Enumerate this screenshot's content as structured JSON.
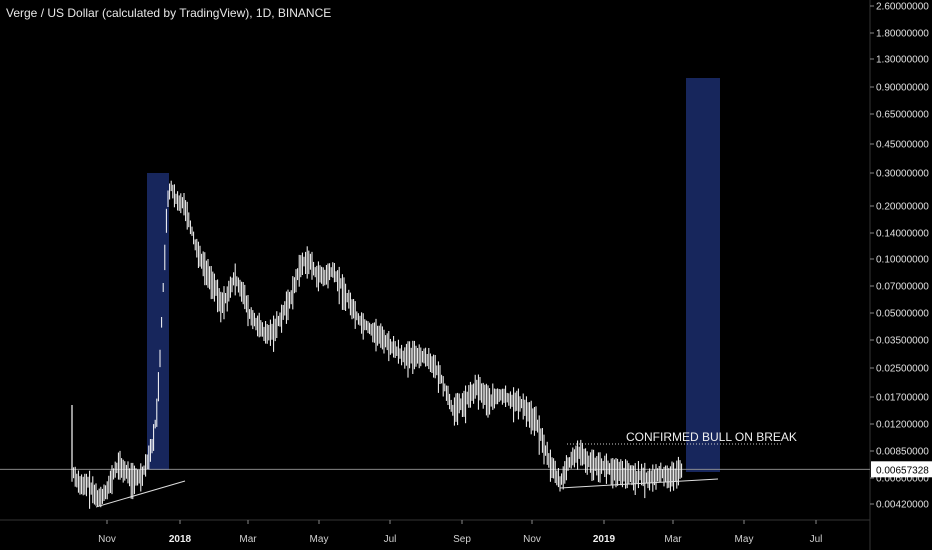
{
  "title": "Verge / US Dollar (calculated by TradingView), 1D, BINANCE",
  "annotation": "CONFIRMED BULL ON BREAK",
  "current_price_label": "0.00657328",
  "colors": {
    "background": "#000000",
    "candles": "#ffffff",
    "highlight_box": "#1a2a66",
    "price_line": "#9a9a9a",
    "price_tag_bg": "#ffffff",
    "price_tag_text": "#000000"
  },
  "chart_data": {
    "type": "line",
    "scale": "log",
    "ylim": [
      0.0035,
      2.8
    ],
    "y_ticks": [
      "2.60000000",
      "1.80000000",
      "1.30000000",
      "0.90000000",
      "0.65000000",
      "0.45000000",
      "0.30000000",
      "0.20000000",
      "0.14000000",
      "0.10000000",
      "0.07000000",
      "0.05000000",
      "0.03500000",
      "0.02500000",
      "0.01700000",
      "0.01200000",
      "0.00850000",
      "0.00600000",
      "0.00420000"
    ],
    "x_ticks": [
      {
        "label": "Nov",
        "bold": false
      },
      {
        "label": "2018",
        "bold": true
      },
      {
        "label": "Mar",
        "bold": false
      },
      {
        "label": "May",
        "bold": false
      },
      {
        "label": "Jul",
        "bold": false
      },
      {
        "label": "Sep",
        "bold": false
      },
      {
        "label": "Nov",
        "bold": false
      },
      {
        "label": "2019",
        "bold": true
      },
      {
        "label": "Mar",
        "bold": false
      },
      {
        "label": "May",
        "bold": false
      },
      {
        "label": "Jul",
        "bold": false
      }
    ],
    "series": [
      {
        "x": [
          "2017-10-01",
          "2017-10-05",
          "2017-10-10",
          "2017-10-15",
          "2017-10-20",
          "2017-10-25",
          "2017-11-01",
          "2017-11-05",
          "2017-11-10",
          "2017-11-15",
          "2017-11-20",
          "2017-11-25",
          "2017-12-01",
          "2017-12-05",
          "2017-12-10",
          "2017-12-13",
          "2017-12-16",
          "2017-12-19",
          "2017-12-22",
          "2017-12-25",
          "2017-12-28",
          "2018-01-01",
          "2018-01-05",
          "2018-01-10",
          "2018-01-15",
          "2018-01-20",
          "2018-01-25",
          "2018-02-01",
          "2018-02-06",
          "2018-02-12",
          "2018-02-18",
          "2018-02-25",
          "2018-03-03",
          "2018-03-10",
          "2018-03-17",
          "2018-03-24",
          "2018-04-01",
          "2018-04-08",
          "2018-04-15",
          "2018-04-22",
          "2018-04-29",
          "2018-05-06",
          "2018-05-13",
          "2018-05-20",
          "2018-05-27",
          "2018-06-05",
          "2018-06-15",
          "2018-06-25",
          "2018-07-05",
          "2018-07-15",
          "2018-07-25",
          "2018-08-05",
          "2018-08-15",
          "2018-08-25",
          "2018-09-05",
          "2018-09-15",
          "2018-09-25",
          "2018-10-05",
          "2018-10-15",
          "2018-10-25",
          "2018-11-05",
          "2018-11-12",
          "2018-11-18",
          "2018-11-25",
          "2018-12-01",
          "2018-12-10",
          "2018-12-20",
          "2018-12-30",
          "2019-01-10",
          "2019-01-20",
          "2019-02-01",
          "2019-02-10",
          "2019-02-20",
          "2019-03-01",
          "2019-03-10"
        ],
        "values": [
          0.0065,
          0.0058,
          0.0052,
          0.0055,
          0.0048,
          0.0045,
          0.0052,
          0.006,
          0.007,
          0.0065,
          0.006,
          0.0058,
          0.0062,
          0.0075,
          0.0095,
          0.014,
          0.03,
          0.08,
          0.2,
          0.26,
          0.22,
          0.2,
          0.21,
          0.16,
          0.12,
          0.1,
          0.085,
          0.07,
          0.055,
          0.062,
          0.078,
          0.065,
          0.048,
          0.042,
          0.037,
          0.04,
          0.05,
          0.062,
          0.09,
          0.1,
          0.082,
          0.078,
          0.085,
          0.072,
          0.058,
          0.045,
          0.04,
          0.036,
          0.031,
          0.028,
          0.029,
          0.027,
          0.021,
          0.014,
          0.016,
          0.019,
          0.016,
          0.017,
          0.016,
          0.015,
          0.012,
          0.0085,
          0.0068,
          0.0055,
          0.0068,
          0.0082,
          0.0072,
          0.007,
          0.0064,
          0.0062,
          0.006,
          0.0058,
          0.0062,
          0.006,
          0.0066
        ]
      }
    ]
  }
}
